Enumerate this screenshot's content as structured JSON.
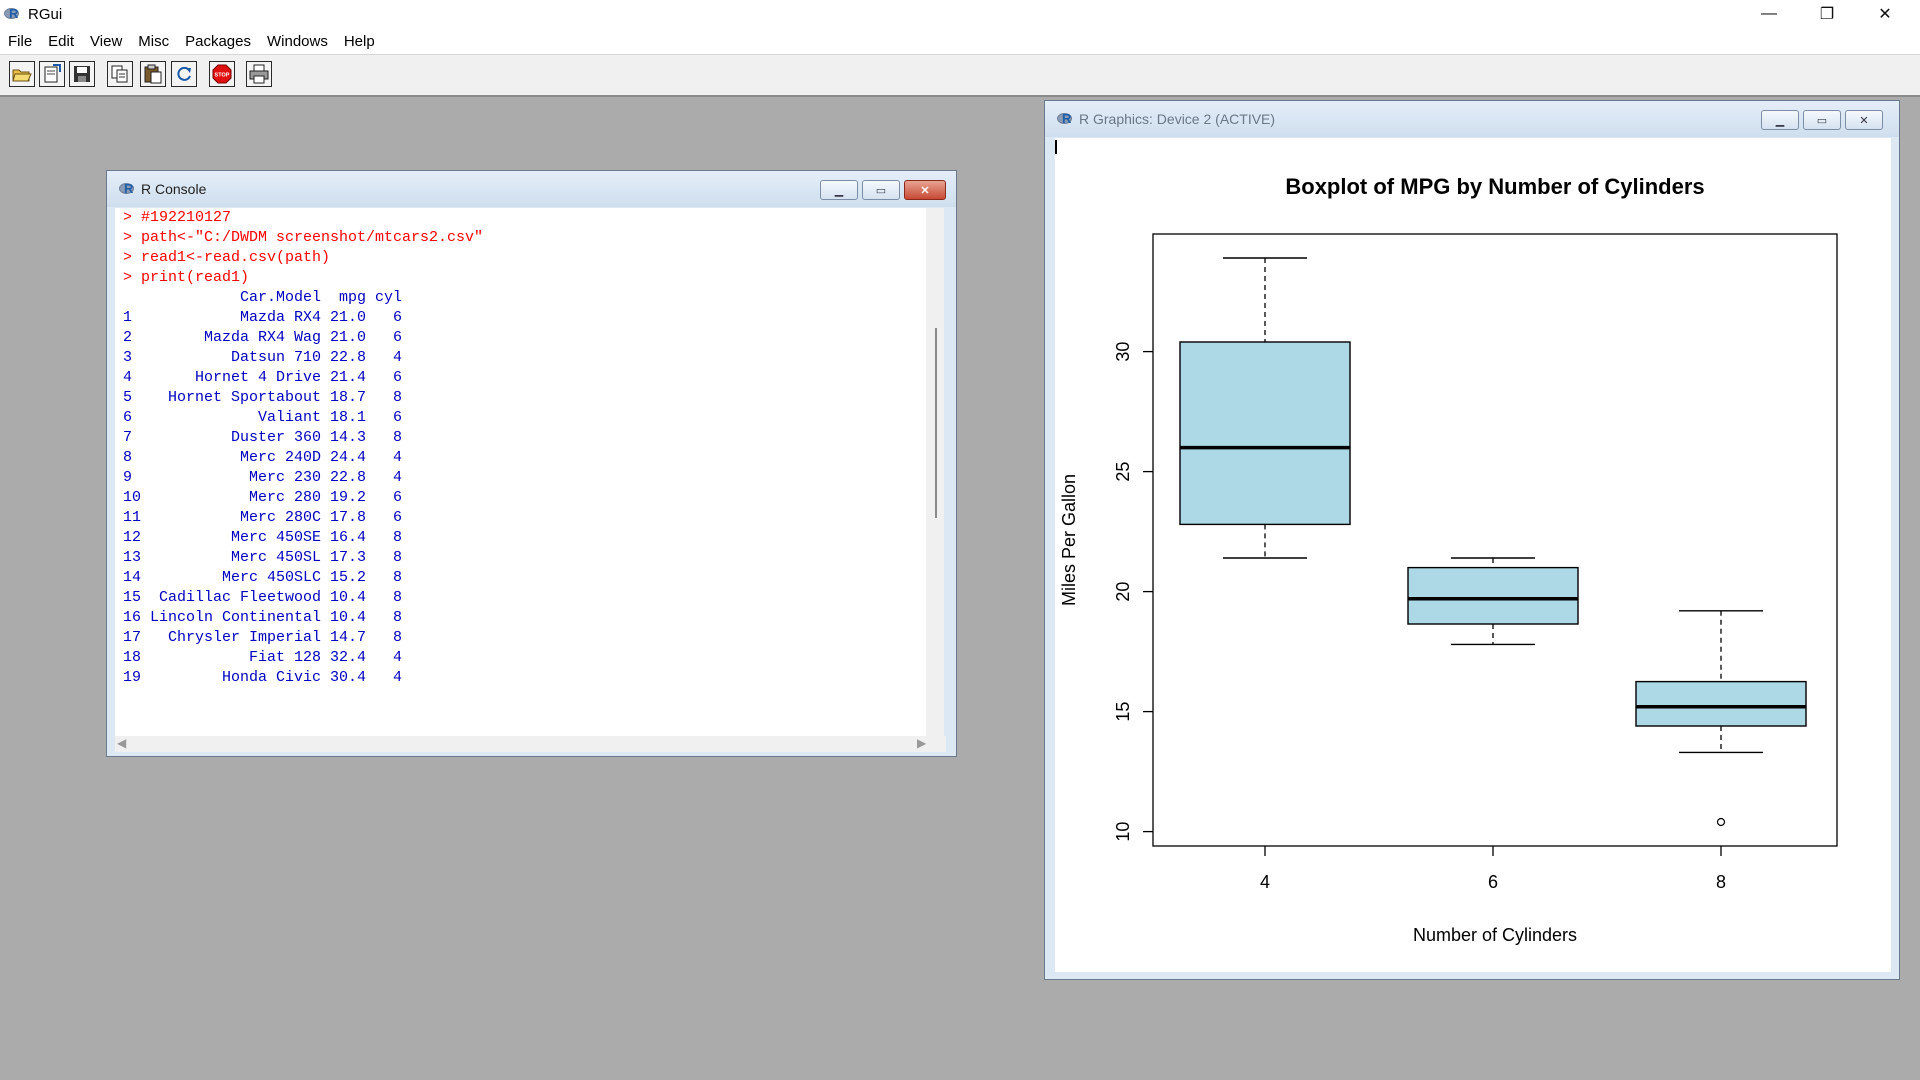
{
  "app": {
    "title": "RGui",
    "controls": {
      "minimize": "—",
      "restore": "❐",
      "close": "✕"
    }
  },
  "menu": [
    "File",
    "Edit",
    "View",
    "Misc",
    "Packages",
    "Windows",
    "Help"
  ],
  "toolbar": {
    "buttons": [
      "open-script-icon",
      "load-workspace-icon",
      "save-icon",
      "copy-icon",
      "paste-icon",
      "refresh-icon",
      "stop-icon",
      "print-icon"
    ],
    "stop_label": "STOP"
  },
  "console": {
    "title": "R Console",
    "lines": [
      {
        "type": "cmd",
        "text": "> #192210127"
      },
      {
        "type": "cmd",
        "text": "> path<-\"C:/DWDM screenshot/mtcars2.csv\""
      },
      {
        "type": "cmd",
        "text": "> read1<-read.csv(path)"
      },
      {
        "type": "cmd",
        "text": "> print(read1)"
      },
      {
        "type": "out",
        "text": "             Car.Model  mpg cyl"
      },
      {
        "type": "out",
        "text": "1            Mazda RX4 21.0   6"
      },
      {
        "type": "out",
        "text": "2        Mazda RX4 Wag 21.0   6"
      },
      {
        "type": "out",
        "text": "3           Datsun 710 22.8   4"
      },
      {
        "type": "out",
        "text": "4       Hornet 4 Drive 21.4   6"
      },
      {
        "type": "out",
        "text": "5    Hornet Sportabout 18.7   8"
      },
      {
        "type": "out",
        "text": "6              Valiant 18.1   6"
      },
      {
        "type": "out",
        "text": "7           Duster 360 14.3   8"
      },
      {
        "type": "out",
        "text": "8            Merc 240D 24.4   4"
      },
      {
        "type": "out",
        "text": "9             Merc 230 22.8   4"
      },
      {
        "type": "out",
        "text": "10            Merc 280 19.2   6"
      },
      {
        "type": "out",
        "text": "11           Merc 280C 17.8   6"
      },
      {
        "type": "out",
        "text": "12          Merc 450SE 16.4   8"
      },
      {
        "type": "out",
        "text": "13          Merc 450SL 17.3   8"
      },
      {
        "type": "out",
        "text": "14         Merc 450SLC 15.2   8"
      },
      {
        "type": "out",
        "text": "15  Cadillac Fleetwood 10.4   8"
      },
      {
        "type": "out",
        "text": "16 Lincoln Continental 10.4   8"
      },
      {
        "type": "out",
        "text": "17   Chrysler Imperial 14.7   8"
      },
      {
        "type": "out",
        "text": "18            Fiat 128 32.4   4"
      },
      {
        "type": "out",
        "text": "19         Honda Civic 30.4   4"
      }
    ],
    "colors": {
      "command": "#ff0000",
      "output": "#0000c0"
    }
  },
  "graphics": {
    "title": "R Graphics: Device 2 (ACTIVE)"
  },
  "chart_data": {
    "type": "boxplot",
    "title": "Boxplot of MPG by Number of Cylinders",
    "xlabel": "Number of Cylinders",
    "ylabel": "Miles Per Gallon",
    "categories": [
      "4",
      "6",
      "8"
    ],
    "boxes": [
      {
        "category": "4",
        "whisker_low": 21.4,
        "q1": 22.8,
        "median": 26.0,
        "q3": 30.4,
        "whisker_high": 33.9,
        "outliers": []
      },
      {
        "category": "6",
        "whisker_low": 17.8,
        "q1": 18.65,
        "median": 19.7,
        "q3": 21.0,
        "whisker_high": 21.4,
        "outliers": []
      },
      {
        "category": "8",
        "whisker_low": 13.3,
        "q1": 14.4,
        "median": 15.2,
        "q3": 16.25,
        "whisker_high": 19.2,
        "outliers": [
          10.4
        ]
      }
    ],
    "yticks": [
      10,
      15,
      20,
      25,
      30
    ],
    "ylim": [
      9.4,
      34.9
    ],
    "box_color": "#add8e6",
    "grid": false,
    "legend": "none"
  }
}
